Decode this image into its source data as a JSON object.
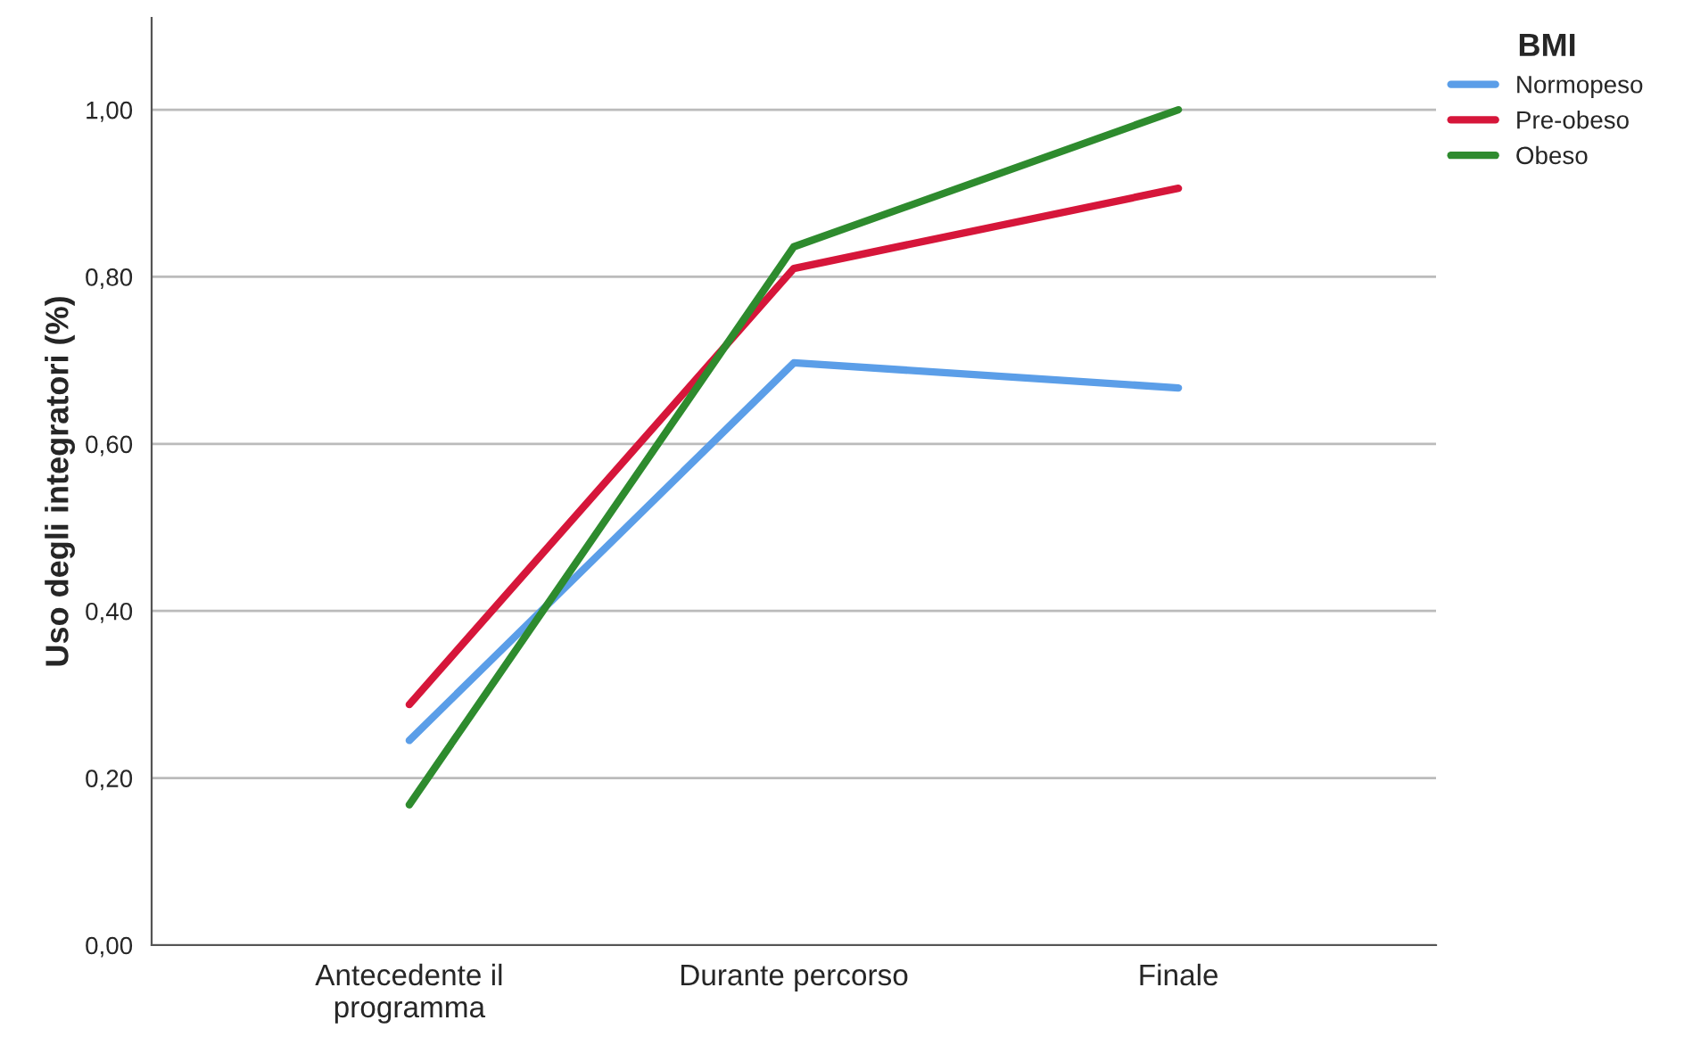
{
  "chart_data": {
    "type": "line",
    "ylabel": "Uso degli integratori (%)",
    "legend_title": "BMI",
    "legend": "top right",
    "categories": [
      "Antecedente il\nprogramma",
      "Durante percorso",
      "Finale"
    ],
    "series": [
      {
        "name": "Normopeso",
        "color": "#5b9ee8",
        "values": [
          0.245,
          0.697,
          0.667
        ]
      },
      {
        "name": "Pre-obeso",
        "color": "#d6163a",
        "values": [
          0.288,
          0.81,
          0.906
        ]
      },
      {
        "name": "Obeso",
        "color": "#2e8b2e",
        "values": [
          0.168,
          0.836,
          1.0
        ]
      }
    ],
    "ylim": [
      0,
      1.11
    ],
    "yticks": [
      {
        "value": 0,
        "label": "0,00"
      },
      {
        "value": 0.2,
        "label": "0,20"
      },
      {
        "value": 0.4,
        "label": "0,40"
      },
      {
        "value": 0.6,
        "label": "0,60"
      },
      {
        "value": 0.8,
        "label": "0,80"
      },
      {
        "value": 1.0,
        "label": "1,00"
      }
    ],
    "grid": "y",
    "marker": "none",
    "line_style": "solid"
  }
}
